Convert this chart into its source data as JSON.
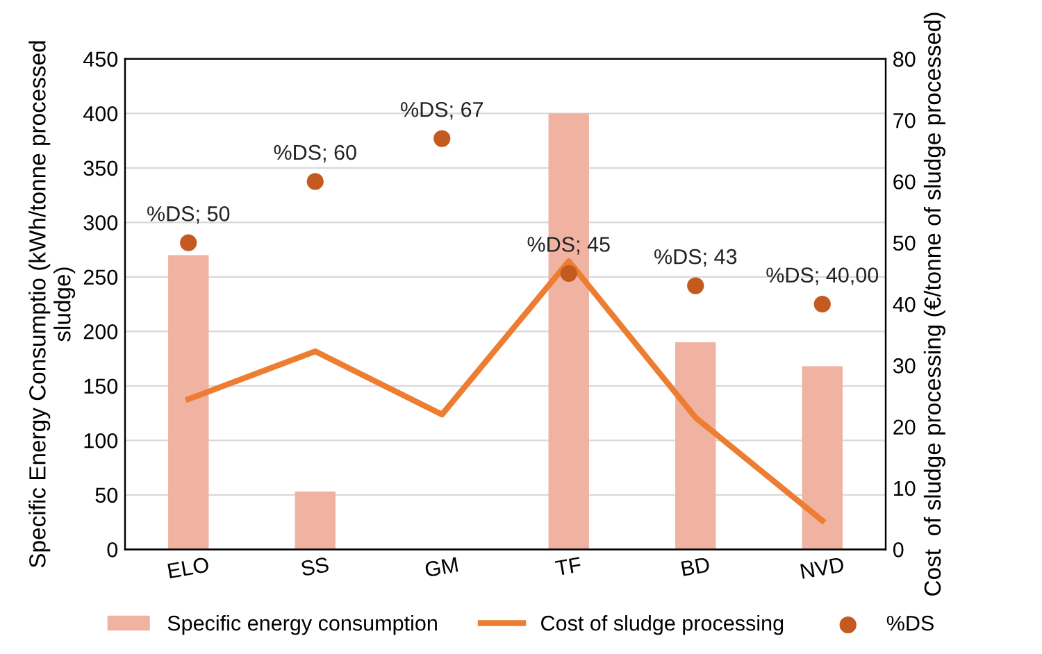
{
  "chart_data": {
    "type": "bar",
    "categories": [
      "ELO",
      "SS",
      "GM",
      "TF",
      "BD",
      "NVD"
    ],
    "ylabel": "Specific Energy Consumptio (kWh/tonne processed sludge)",
    "y2label": "Cost  of sludge processing (€/tonne of sludge processed)",
    "series": [
      {
        "name": "Specific energy consumption",
        "color": "#f0b3a2",
        "values": [
          270,
          53,
          null,
          400,
          190,
          168
        ]
      },
      {
        "name": "Cost of sludge processing",
        "type": "line",
        "axis": "y2",
        "color": "#ed7d31",
        "values": [
          24.5,
          32.3,
          22,
          47,
          21.5,
          4.7
        ]
      },
      {
        "name": "%DS",
        "type": "scatter",
        "marker": "circle",
        "axis": "y2",
        "color": "#c55a21",
        "values": [
          50,
          60,
          67,
          45,
          43,
          40
        ],
        "value_labels": [
          "%DS; 50",
          "%DS; 60",
          "%DS; 67",
          "%DS; 45",
          "%DS; 43",
          "%DS; 40,00"
        ]
      }
    ],
    "ylim": [
      0,
      450
    ],
    "yticks": [
      0,
      50,
      100,
      150,
      200,
      250,
      300,
      350,
      400,
      450
    ],
    "y2lim": [
      0,
      80
    ],
    "y2ticks": [
      0,
      10,
      20,
      30,
      40,
      50,
      60,
      70,
      80
    ],
    "grid": "y",
    "legend": "bottom"
  }
}
